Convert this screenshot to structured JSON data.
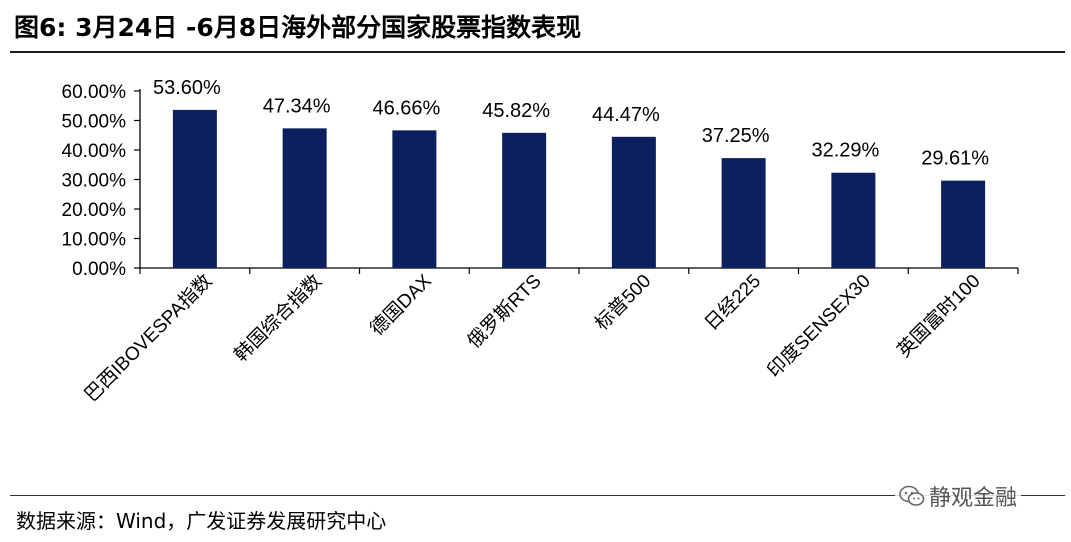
{
  "header": {
    "title": "图6: 3月24日 -6月8日海外部分国家股票指数表现"
  },
  "footer": {
    "source": "数据来源：Wind，广发证券发展研究中心",
    "watermark": "静观金融"
  },
  "chart_data": {
    "type": "bar",
    "categories": [
      "巴西IBOVESPA指数",
      "韩国综合指数",
      "德国DAX",
      "俄罗斯RTS",
      "标普500",
      "日经225",
      "印度SENSEX30",
      "英国富时100"
    ],
    "values": [
      53.6,
      47.34,
      46.66,
      45.82,
      44.47,
      37.25,
      32.29,
      29.61
    ],
    "data_labels": [
      "53.60%",
      "47.34%",
      "46.66%",
      "45.82%",
      "44.47%",
      "37.25%",
      "32.29%",
      "29.61%"
    ],
    "y_ticks": [
      0,
      10,
      20,
      30,
      40,
      50,
      60
    ],
    "y_tick_labels": [
      "0.00%",
      "10.00%",
      "20.00%",
      "30.00%",
      "40.00%",
      "50.00%",
      "60.00%"
    ],
    "ylim": [
      0,
      60
    ],
    "bar_color": "#0c1f5e",
    "grid": false,
    "legend": "none"
  }
}
